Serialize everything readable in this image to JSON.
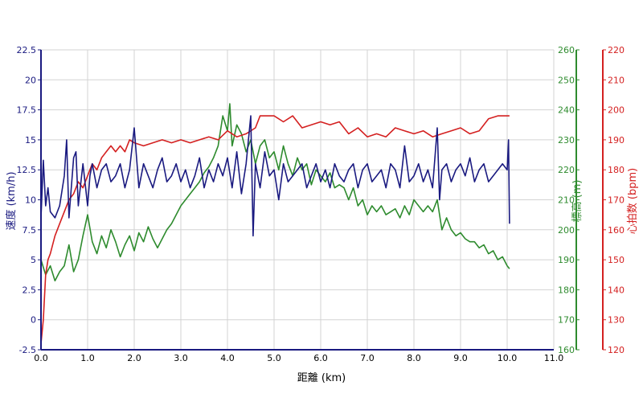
{
  "chart_data": {
    "type": "line",
    "title": "",
    "xlabel": "距離 (km)",
    "xlim": [
      0,
      11
    ],
    "x_ticks": [
      "0.0",
      "1.0",
      "2.0",
      "3.0",
      "4.0",
      "5.0",
      "6.0",
      "7.0",
      "8.0",
      "9.0",
      "10.0",
      "11.0"
    ],
    "grid": true,
    "axes": {
      "speed": {
        "label": "速度 (km/h)",
        "side": "left",
        "color": "#1a1a80",
        "range": [
          -2.5,
          22.5
        ],
        "ticks": [
          "-2.5",
          "0",
          "2.5",
          "5",
          "7.5",
          "10",
          "12.5",
          "15",
          "17.5",
          "20",
          "22.5"
        ]
      },
      "elevation": {
        "label": "標高 (m)",
        "side": "right-inner",
        "color": "#2e8b2e",
        "range": [
          160,
          260
        ],
        "ticks": [
          "160",
          "170",
          "180",
          "190",
          "200",
          "210",
          "220",
          "230",
          "240",
          "250",
          "260"
        ]
      },
      "heart_rate": {
        "label": "心拍数 (bpm)",
        "side": "right-outer",
        "color": "#d42020",
        "range": [
          120,
          220
        ],
        "ticks": [
          "120",
          "130",
          "140",
          "150",
          "160",
          "170",
          "180",
          "190",
          "200",
          "210",
          "220"
        ]
      }
    },
    "series": [
      {
        "axis": "speed",
        "color": "#1a1a80",
        "x": [
          0,
          0.05,
          0.1,
          0.15,
          0.2,
          0.3,
          0.4,
          0.5,
          0.55,
          0.6,
          0.7,
          0.75,
          0.8,
          0.9,
          1.0,
          1.05,
          1.1,
          1.2,
          1.3,
          1.4,
          1.5,
          1.6,
          1.7,
          1.8,
          1.9,
          2.0,
          2.1,
          2.2,
          2.3,
          2.4,
          2.5,
          2.6,
          2.7,
          2.8,
          2.9,
          3.0,
          3.1,
          3.2,
          3.3,
          3.4,
          3.5,
          3.6,
          3.7,
          3.8,
          3.9,
          4.0,
          4.1,
          4.2,
          4.3,
          4.4,
          4.5,
          4.55,
          4.6,
          4.7,
          4.8,
          4.9,
          5.0,
          5.1,
          5.2,
          5.3,
          5.4,
          5.5,
          5.6,
          5.7,
          5.8,
          5.9,
          6.0,
          6.1,
          6.2,
          6.3,
          6.4,
          6.5,
          6.6,
          6.7,
          6.8,
          6.9,
          7.0,
          7.1,
          7.2,
          7.3,
          7.4,
          7.5,
          7.6,
          7.7,
          7.8,
          7.9,
          8.0,
          8.1,
          8.2,
          8.3,
          8.4,
          8.5,
          8.55,
          8.6,
          8.7,
          8.8,
          8.9,
          9.0,
          9.1,
          9.2,
          9.3,
          9.4,
          9.5,
          9.6,
          9.7,
          9.8,
          9.9,
          10.0,
          10.03,
          10.05
        ],
        "values": [
          8.5,
          13.3,
          9.5,
          11,
          9,
          8.5,
          9.5,
          12,
          15,
          8.5,
          13.5,
          14,
          9.5,
          13,
          9.5,
          12,
          13,
          11,
          12.5,
          13,
          11.5,
          12,
          13,
          11,
          12.5,
          16,
          11,
          13,
          12,
          11,
          12.5,
          13.5,
          11.5,
          12,
          13,
          11.5,
          12.5,
          11,
          12,
          13.5,
          11,
          12.5,
          11.5,
          13,
          12,
          13.5,
          11,
          14,
          10.5,
          13,
          17,
          7,
          13,
          11,
          14,
          12,
          12.5,
          10,
          13,
          11.5,
          12,
          12.5,
          13,
          11,
          12,
          13,
          11.5,
          12.5,
          11,
          13,
          12,
          11.5,
          12.5,
          13,
          11,
          12.5,
          13,
          11.5,
          12,
          12.5,
          11,
          13,
          12.5,
          11,
          14.5,
          11.5,
          12,
          13,
          11.5,
          12.5,
          11,
          16,
          10,
          12.5,
          13,
          11.5,
          12.5,
          13,
          12,
          13.5,
          11.5,
          12.5,
          13,
          11.5,
          12,
          12.5,
          13,
          12.5,
          15,
          8
        ]
      },
      {
        "axis": "elevation",
        "color": "#2e8b2e",
        "x": [
          0,
          0.1,
          0.2,
          0.3,
          0.4,
          0.5,
          0.6,
          0.7,
          0.8,
          0.9,
          1.0,
          1.1,
          1.2,
          1.3,
          1.4,
          1.5,
          1.6,
          1.7,
          1.8,
          1.9,
          2.0,
          2.1,
          2.2,
          2.3,
          2.4,
          2.5,
          2.6,
          2.7,
          2.8,
          2.9,
          3.0,
          3.1,
          3.2,
          3.3,
          3.4,
          3.5,
          3.6,
          3.7,
          3.8,
          3.9,
          4.0,
          4.05,
          4.1,
          4.2,
          4.3,
          4.4,
          4.5,
          4.6,
          4.7,
          4.8,
          4.9,
          5.0,
          5.1,
          5.2,
          5.3,
          5.4,
          5.5,
          5.6,
          5.7,
          5.8,
          5.9,
          6.0,
          6.1,
          6.2,
          6.3,
          6.4,
          6.5,
          6.6,
          6.7,
          6.8,
          6.9,
          7.0,
          7.1,
          7.2,
          7.3,
          7.4,
          7.5,
          7.6,
          7.7,
          7.8,
          7.9,
          8.0,
          8.1,
          8.2,
          8.3,
          8.4,
          8.5,
          8.6,
          8.7,
          8.8,
          8.9,
          9.0,
          9.1,
          9.2,
          9.3,
          9.4,
          9.5,
          9.6,
          9.7,
          9.8,
          9.9,
          10.0,
          10.05
        ],
        "values": [
          190,
          185,
          188,
          183,
          186,
          188,
          195,
          186,
          190,
          198,
          205,
          196,
          192,
          198,
          194,
          200,
          196,
          191,
          195,
          198,
          193,
          199,
          196,
          201,
          197,
          194,
          197,
          200,
          202,
          205,
          208,
          210,
          212,
          214,
          216,
          219,
          221,
          224,
          228,
          238,
          233,
          242,
          228,
          235,
          232,
          226,
          230,
          222,
          228,
          230,
          224,
          226,
          220,
          228,
          222,
          218,
          224,
          220,
          222,
          215,
          220,
          218,
          216,
          219,
          214,
          215,
          214,
          210,
          214,
          208,
          210,
          205,
          208,
          206,
          208,
          205,
          206,
          207,
          204,
          208,
          205,
          210,
          208,
          206,
          208,
          206,
          210,
          200,
          204,
          200,
          198,
          199,
          197,
          196,
          196,
          194,
          195,
          192,
          193,
          190,
          191,
          188,
          187
        ]
      },
      {
        "axis": "heart_rate",
        "color": "#d42020",
        "x": [
          0,
          0.05,
          0.1,
          0.15,
          0.2,
          0.3,
          0.4,
          0.5,
          0.6,
          0.7,
          0.8,
          0.9,
          1.0,
          1.1,
          1.2,
          1.3,
          1.4,
          1.5,
          1.6,
          1.7,
          1.8,
          1.9,
          2.0,
          2.2,
          2.4,
          2.6,
          2.8,
          3.0,
          3.2,
          3.4,
          3.6,
          3.8,
          4.0,
          4.2,
          4.4,
          4.6,
          4.7,
          4.8,
          5.0,
          5.2,
          5.4,
          5.6,
          5.8,
          6.0,
          6.2,
          6.4,
          6.6,
          6.8,
          7.0,
          7.2,
          7.4,
          7.6,
          7.8,
          8.0,
          8.2,
          8.4,
          8.6,
          8.8,
          9.0,
          9.2,
          9.4,
          9.6,
          9.8,
          10.0,
          10.05
        ],
        "values": [
          122,
          130,
          145,
          150,
          152,
          158,
          162,
          166,
          170,
          172,
          176,
          174,
          178,
          182,
          180,
          184,
          186,
          188,
          186,
          188,
          186,
          190,
          189,
          188,
          189,
          190,
          189,
          190,
          189,
          190,
          191,
          190,
          193,
          191,
          192,
          194,
          198,
          198,
          198,
          196,
          198,
          194,
          195,
          196,
          195,
          196,
          192,
          194,
          191,
          192,
          191,
          194,
          193,
          192,
          193,
          191,
          192,
          193,
          194,
          192,
          193,
          197,
          198,
          198,
          198
        ]
      }
    ]
  }
}
